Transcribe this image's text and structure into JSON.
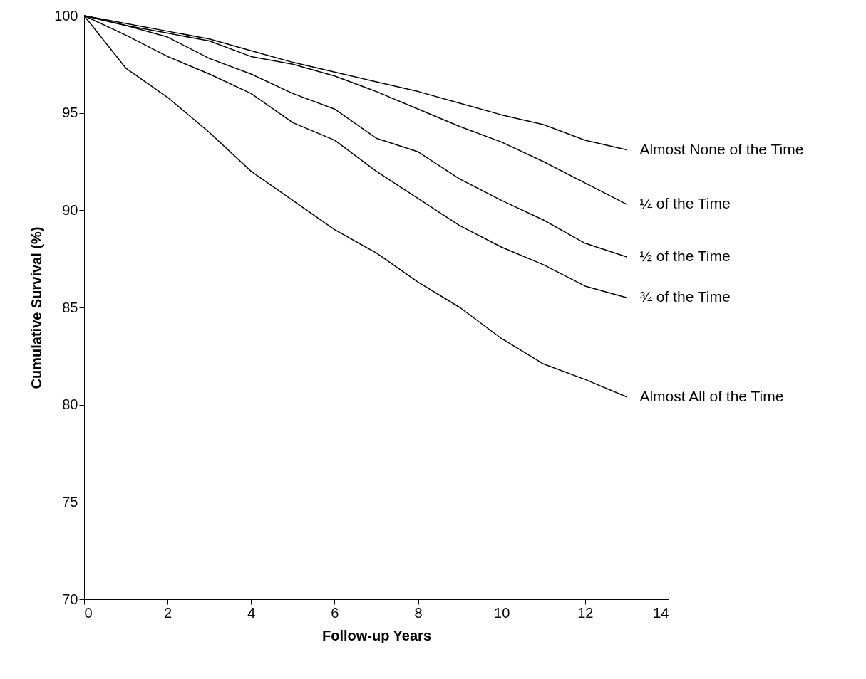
{
  "chart_data": {
    "type": "line",
    "xlabel": "Follow-up Years",
    "ylabel": "Cumulative Survival (%)",
    "x": [
      0,
      1,
      2,
      3,
      4,
      5,
      6,
      7,
      8,
      9,
      10,
      11,
      12,
      13
    ],
    "xlim": [
      0,
      14
    ],
    "xticks": [
      0,
      2,
      4,
      6,
      8,
      10,
      12,
      14
    ],
    "ylim": [
      70,
      100
    ],
    "yticks": [
      70,
      75,
      80,
      85,
      90,
      95,
      100
    ],
    "grid": false,
    "legend": false,
    "marker": "none",
    "line_style": "solid",
    "series": [
      {
        "name": "Almost None of the Time",
        "color": "#000000",
        "values": [
          100,
          99.6,
          99.2,
          98.8,
          98.2,
          97.6,
          97.1,
          96.6,
          96.1,
          95.5,
          94.9,
          94.4,
          93.6,
          93.1
        ]
      },
      {
        "name": "¼ of the Time",
        "color": "#000000",
        "values": [
          100,
          99.5,
          99.1,
          98.7,
          97.9,
          97.5,
          96.9,
          96.1,
          95.2,
          94.3,
          93.5,
          92.5,
          91.4,
          90.3
        ]
      },
      {
        "name": "½ of the Time",
        "color": "#000000",
        "values": [
          100,
          99.5,
          98.9,
          97.8,
          97.0,
          96.0,
          95.2,
          93.7,
          93.0,
          91.6,
          90.5,
          89.5,
          88.3,
          87.6
        ]
      },
      {
        "name": "¾ of the Time",
        "color": "#000000",
        "values": [
          100,
          99.0,
          97.9,
          97.0,
          96.0,
          94.5,
          93.6,
          92.0,
          90.6,
          89.2,
          88.1,
          87.2,
          86.1,
          85.5
        ]
      },
      {
        "name": "Almost All of the Time",
        "color": "#000000",
        "values": [
          100,
          97.3,
          95.8,
          94.0,
          92.0,
          90.5,
          89.0,
          87.8,
          86.3,
          85.0,
          83.4,
          82.1,
          81.3,
          80.4
        ]
      }
    ]
  }
}
